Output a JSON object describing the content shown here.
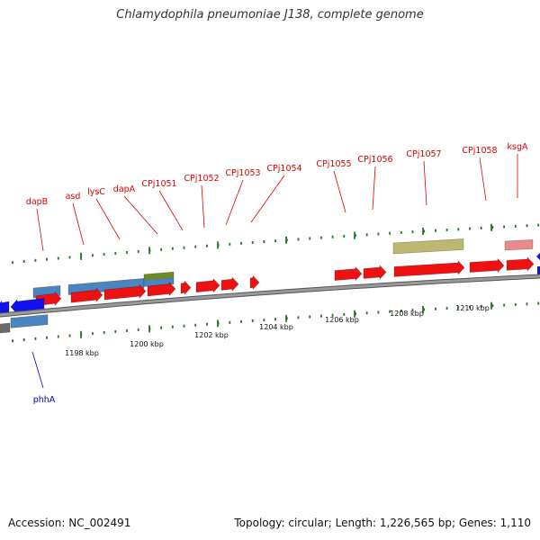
{
  "title": "Chlamydophila pneumoniae J138, complete genome",
  "footer": {
    "accession": "Accession: NC_002491",
    "summary": "Topology: circular; Length: 1,226,565 bp; Genes: 1,110"
  },
  "colors": {
    "cds_forward": "#ee1111",
    "cds_reverse": "#1111ee",
    "gene_blue": "#4a85c0",
    "gene_olive": "#bdb870",
    "gene_green": "#6b8e23",
    "gene_pink": "#e88a8a",
    "backbone": "#888888",
    "tick_green": "#227722",
    "label_forward": "#dd0000",
    "label_reverse": "#0000cc"
  },
  "forward_labels": [
    "dapB",
    "asd",
    "lysC",
    "dapA",
    "CPj1051",
    "CPj1052",
    "CPj1053",
    "CPj1054",
    "CPj1055",
    "CPj1056",
    "CPj1057",
    "CPj1058",
    "ksgA"
  ],
  "reverse_labels": [
    "phhA"
  ],
  "ticks": [
    "1198 kbp",
    "1200 kbp",
    "1202 kbp",
    "1204 kbp",
    "1206 kbp",
    "1208 kbp",
    "1210 kbp"
  ]
}
